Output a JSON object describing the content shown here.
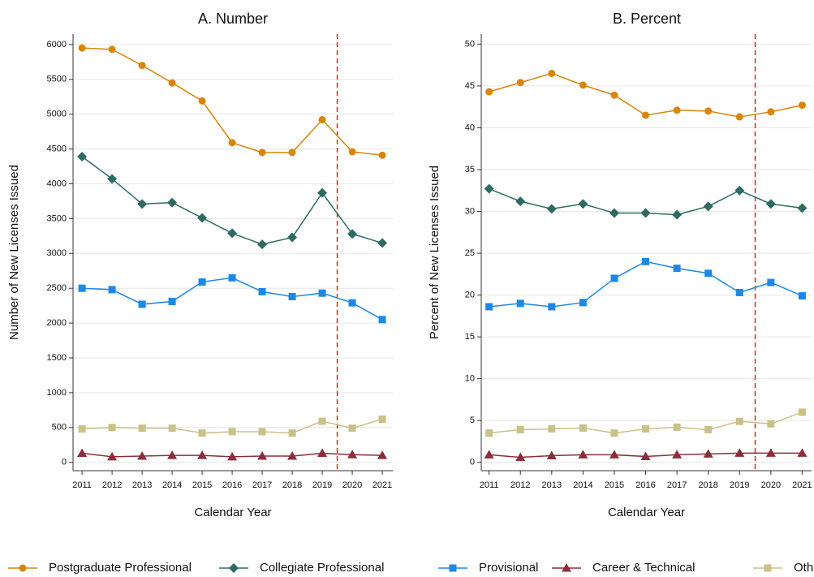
{
  "chart_data": [
    {
      "type": "line",
      "title": "A. Number",
      "xlabel": "Calendar Year",
      "ylabel": "Number of New Licenses Issued",
      "x": [
        2011,
        2012,
        2013,
        2014,
        2015,
        2016,
        2017,
        2018,
        2019,
        2020,
        2021
      ],
      "xlim": [
        2010.7,
        2021.35
      ],
      "xticks": [
        2011,
        2012,
        2013,
        2014,
        2015,
        2016,
        2017,
        2018,
        2019,
        2020,
        2021
      ],
      "ylim": [
        -120,
        6150
      ],
      "yticks": [
        0,
        500,
        1000,
        1500,
        2000,
        2500,
        3000,
        3500,
        4000,
        4500,
        5000,
        5500,
        6000
      ],
      "grid": true,
      "vline": 2019.5,
      "vline_color": "#d62728",
      "series": [
        {
          "name": "Postgraduate Professional",
          "color": "#d8860b",
          "marker": "circle",
          "values": [
            5950,
            5930,
            5700,
            5450,
            5190,
            4590,
            4450,
            4450,
            4920,
            4460,
            4410
          ]
        },
        {
          "name": "Collegiate Professional",
          "color": "#2e6b62",
          "marker": "diamond",
          "values": [
            4390,
            4070,
            3710,
            3730,
            3510,
            3290,
            3130,
            3230,
            3870,
            3280,
            3150
          ]
        },
        {
          "name": "Provisional",
          "color": "#1e88e5",
          "marker": "square",
          "values": [
            2500,
            2480,
            2270,
            2310,
            2590,
            2650,
            2450,
            2380,
            2430,
            2290,
            2050
          ]
        },
        {
          "name": "Career & Technical",
          "color": "#8b2e3c",
          "marker": "triangle",
          "values": [
            130,
            80,
            90,
            100,
            100,
            80,
            90,
            90,
            130,
            110,
            100
          ]
        },
        {
          "name": "Other",
          "color": "#c9c18a",
          "marker": "square",
          "values": [
            480,
            500,
            490,
            490,
            420,
            440,
            440,
            420,
            590,
            490,
            620
          ]
        }
      ]
    },
    {
      "type": "line",
      "title": "B. Percent",
      "xlabel": "Calendar Year",
      "ylabel": "Percent of New Licenses Issued",
      "x": [
        2011,
        2012,
        2013,
        2014,
        2015,
        2016,
        2017,
        2018,
        2019,
        2020,
        2021
      ],
      "xlim": [
        2010.75,
        2021.3
      ],
      "xticks": [
        2011,
        2012,
        2013,
        2014,
        2015,
        2016,
        2017,
        2018,
        2019,
        2020,
        2021
      ],
      "ylim": [
        -1,
        51.2
      ],
      "yticks": [
        0,
        5,
        10,
        15,
        20,
        25,
        30,
        35,
        40,
        45,
        50
      ],
      "grid": true,
      "vline": 2019.5,
      "vline_color": "#d62728",
      "series": [
        {
          "name": "Postgraduate Professional",
          "color": "#d8860b",
          "marker": "circle",
          "values": [
            44.3,
            45.4,
            46.5,
            45.1,
            43.9,
            41.5,
            42.1,
            42.0,
            41.3,
            41.9,
            42.7
          ]
        },
        {
          "name": "Collegiate Professional",
          "color": "#2e6b62",
          "marker": "diamond",
          "values": [
            32.7,
            31.2,
            30.3,
            30.9,
            29.8,
            29.8,
            29.6,
            30.6,
            32.5,
            30.9,
            30.4
          ]
        },
        {
          "name": "Provisional",
          "color": "#1e88e5",
          "marker": "square",
          "values": [
            18.6,
            19.0,
            18.6,
            19.1,
            22.0,
            24.0,
            23.2,
            22.6,
            20.3,
            21.5,
            19.9
          ]
        },
        {
          "name": "Career & Technical",
          "color": "#8b2e3c",
          "marker": "triangle",
          "values": [
            0.9,
            0.6,
            0.8,
            0.9,
            0.9,
            0.7,
            0.9,
            1.0,
            1.1,
            1.1,
            1.1
          ]
        },
        {
          "name": "Other",
          "color": "#c9c18a",
          "marker": "square",
          "values": [
            3.5,
            3.9,
            4.0,
            4.1,
            3.5,
            4.0,
            4.2,
            3.9,
            4.9,
            4.6,
            6.0
          ]
        }
      ]
    }
  ]
}
